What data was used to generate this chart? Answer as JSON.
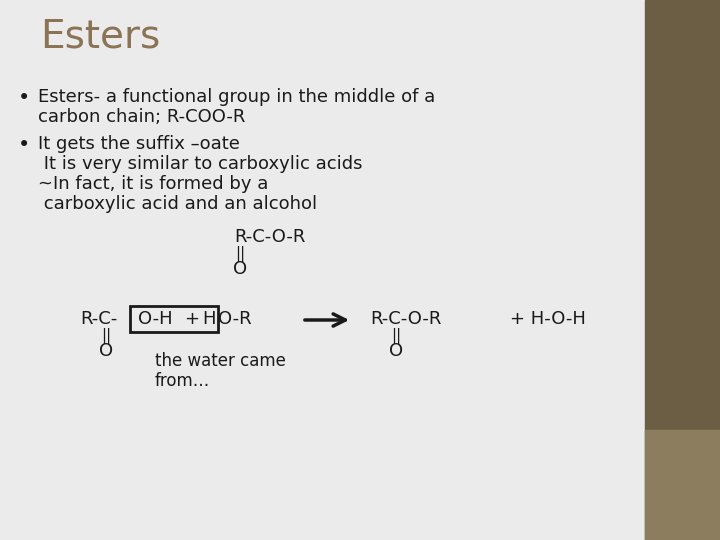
{
  "title": "Esters",
  "title_color": "#8B7355",
  "title_fontsize": 28,
  "bg_color": "#EBEBEB",
  "right_panel_color": "#6B5E45",
  "right_panel_light_color": "#8B7D5E",
  "bullet1_line1": "Esters- a functional group in the middle of a",
  "bullet1_line2": "carbon chain; R-COO-R",
  "bullet2_line1": "It gets the suffix –oate",
  "bullet2_line2": " It is very similar to carboxylic acids",
  "bullet2_line3": "~In fact, it is formed by a",
  "bullet2_line4": " carboxylic acid and an alcohol",
  "body_fontsize": 13,
  "body_color": "#1a1a1a",
  "formula_fontsize": 12
}
